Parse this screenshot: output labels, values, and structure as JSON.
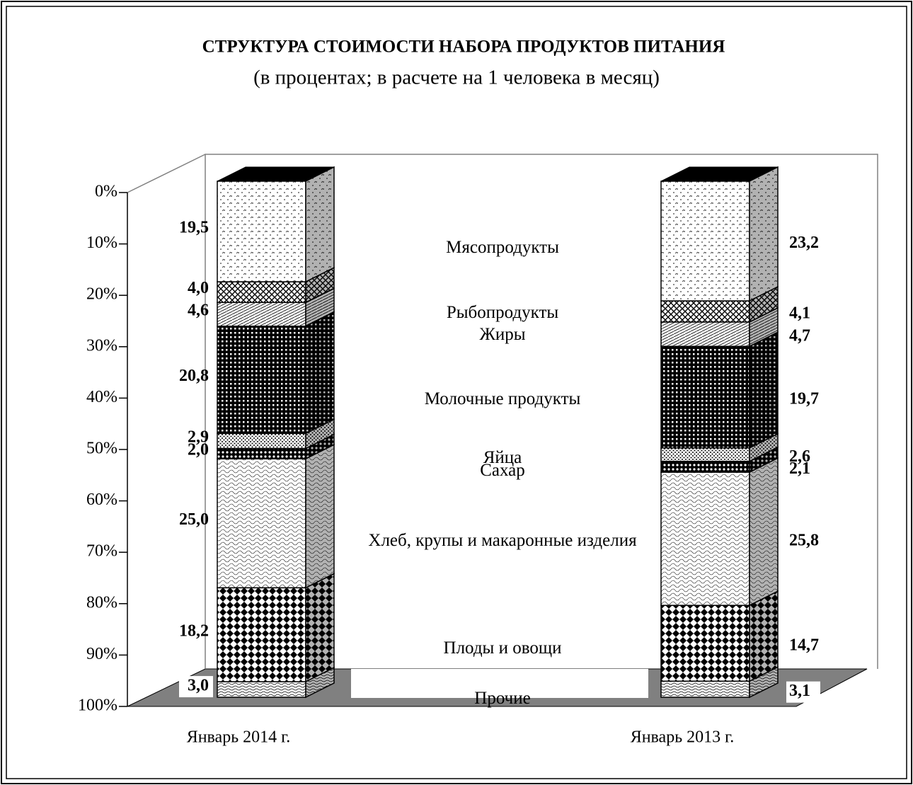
{
  "chart_data": {
    "type": "stacked_bar_3d",
    "title": "СТРУКТУРА СТОИМОСТИ НАБОРА ПРОДУКТОВ ПИТАНИЯ",
    "subtitle": "(в процентах; в расчете на 1 человека в месяц)",
    "categories": [
      "Январь 2014 г.",
      "Январь 2013 г."
    ],
    "ylim": [
      0,
      100
    ],
    "y_inverted": true,
    "yticks": [
      {
        "value": 0,
        "label": "0%"
      },
      {
        "value": 10,
        "label": "10%"
      },
      {
        "value": 20,
        "label": "20%"
      },
      {
        "value": 30,
        "label": "30%"
      },
      {
        "value": 40,
        "label": "40%"
      },
      {
        "value": 50,
        "label": "50%"
      },
      {
        "value": 60,
        "label": "60%"
      },
      {
        "value": 70,
        "label": "70%"
      },
      {
        "value": 80,
        "label": "80%"
      },
      {
        "value": 90,
        "label": "90%"
      },
      {
        "value": 100,
        "label": "100%"
      }
    ],
    "series": [
      {
        "name": "Мясопродукты",
        "color": "#000000",
        "values": [
          19.5,
          23.2
        ],
        "value_labels": [
          "19,5",
          "23,2"
        ]
      },
      {
        "name": "Рыбопродукты",
        "color": "#000000",
        "values": [
          4.0,
          4.1
        ],
        "value_labels": [
          "4,0",
          "4,1"
        ]
      },
      {
        "name": "Жиры",
        "color": "#000000",
        "values": [
          4.6,
          4.7
        ],
        "value_labels": [
          "4,6",
          "4,7"
        ]
      },
      {
        "name": "Молочные продукты",
        "color": "#000000",
        "values": [
          20.8,
          19.7
        ],
        "value_labels": [
          "20,8",
          "19,7"
        ]
      },
      {
        "name": "Яйца",
        "color": "#000000",
        "values": [
          2.9,
          2.6
        ],
        "value_labels": [
          "2,9",
          "2,6"
        ]
      },
      {
        "name": "Сахар",
        "color": "#000000",
        "values": [
          2.0,
          2.1
        ],
        "value_labels": [
          "2,0",
          "2,1"
        ]
      },
      {
        "name": "Хлеб, крупы и макаронные изделия",
        "color": "#000000",
        "values": [
          25.0,
          25.8
        ],
        "value_labels": [
          "25,0",
          "25,8"
        ]
      },
      {
        "name": "Плоды и овощи",
        "color": "#000000",
        "values": [
          18.2,
          14.7
        ],
        "value_labels": [
          "18,2",
          "14,7"
        ]
      },
      {
        "name": "Прочие",
        "color": "#000000",
        "values": [
          3.0,
          3.1
        ],
        "value_labels": [
          "3,0",
          "3,1"
        ]
      }
    ]
  }
}
